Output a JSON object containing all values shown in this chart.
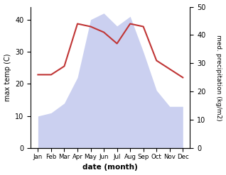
{
  "months": [
    "Jan",
    "Feb",
    "Mar",
    "Apr",
    "May",
    "Jun",
    "Jul",
    "Aug",
    "Sep",
    "Oct",
    "Nov",
    "Dec"
  ],
  "max_temp": [
    10,
    11,
    14,
    22,
    40,
    42,
    38,
    41,
    30,
    18,
    13,
    13
  ],
  "precipitation": [
    26,
    26,
    29,
    44,
    43,
    41,
    37,
    44,
    43,
    31,
    28,
    25
  ],
  "temp_color_fill": "#b0b8e8",
  "precip_color": "#c03535",
  "left_ylim": [
    0,
    44
  ],
  "right_ylim": [
    0,
    50
  ],
  "left_yticks": [
    0,
    10,
    20,
    30,
    40
  ],
  "right_yticks": [
    0,
    10,
    20,
    30,
    40,
    50
  ],
  "ylabel_left": "max temp (C)",
  "ylabel_right": "med. precipitation (kg/m2)",
  "xlabel": "date (month)",
  "fig_width": 3.18,
  "fig_height": 2.47,
  "dpi": 100
}
